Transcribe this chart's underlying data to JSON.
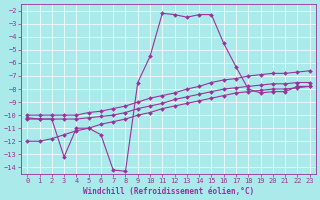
{
  "background_color": "#aaeaea",
  "grid_color": "#ffffff",
  "line_color": "#993399",
  "marker": "D",
  "marker_size": 2.0,
  "line_width": 0.8,
  "xlabel": "Windchill (Refroidissement éolien,°C)",
  "xlabel_fontsize": 5.5,
  "tick_fontsize": 5.0,
  "xlim": [
    -0.5,
    23.5
  ],
  "ylim": [
    -14.5,
    -1.5
  ],
  "yticks": [
    -2,
    -3,
    -4,
    -5,
    -6,
    -7,
    -8,
    -9,
    -10,
    -11,
    -12,
    -13,
    -14
  ],
  "xticks": [
    0,
    1,
    2,
    3,
    4,
    5,
    6,
    7,
    8,
    9,
    10,
    11,
    12,
    13,
    14,
    15,
    16,
    17,
    18,
    19,
    20,
    21,
    22,
    23
  ],
  "series": [
    {
      "x": [
        0,
        1,
        2,
        3,
        4,
        5,
        6,
        7,
        8,
        9,
        10,
        11,
        12,
        13,
        14,
        15,
        16,
        17,
        18,
        19,
        20,
        21,
        22,
        23
      ],
      "y": [
        -10.2,
        -10.3,
        -10.3,
        -13.2,
        -11.0,
        -11.0,
        -11.5,
        -14.2,
        -14.3,
        -7.5,
        -5.5,
        -2.2,
        -2.3,
        -2.5,
        -2.3,
        -2.3,
        -4.5,
        -6.3,
        -8.0,
        -8.3,
        -8.2,
        -8.2,
        -7.8,
        -7.8
      ]
    },
    {
      "x": [
        0,
        1,
        2,
        3,
        4,
        5,
        6,
        7,
        8,
        9,
        10,
        11,
        12,
        13,
        14,
        15,
        16,
        17,
        18,
        19,
        20,
        21,
        22,
        23
      ],
      "y": [
        -10.0,
        -10.0,
        -10.0,
        -10.0,
        -10.0,
        -9.8,
        -9.7,
        -9.5,
        -9.3,
        -9.0,
        -8.7,
        -8.5,
        -8.3,
        -8.0,
        -7.8,
        -7.5,
        -7.3,
        -7.2,
        -7.0,
        -6.9,
        -6.8,
        -6.8,
        -6.7,
        -6.6
      ]
    },
    {
      "x": [
        0,
        1,
        2,
        3,
        4,
        5,
        6,
        7,
        8,
        9,
        10,
        11,
        12,
        13,
        14,
        15,
        16,
        17,
        18,
        19,
        20,
        21,
        22,
        23
      ],
      "y": [
        -10.3,
        -10.3,
        -10.3,
        -10.3,
        -10.3,
        -10.2,
        -10.1,
        -10.0,
        -9.8,
        -9.5,
        -9.3,
        -9.1,
        -8.8,
        -8.6,
        -8.4,
        -8.2,
        -8.0,
        -7.9,
        -7.8,
        -7.7,
        -7.6,
        -7.6,
        -7.5,
        -7.5
      ]
    },
    {
      "x": [
        0,
        1,
        2,
        3,
        4,
        5,
        6,
        7,
        8,
        9,
        10,
        11,
        12,
        13,
        14,
        15,
        16,
        17,
        18,
        19,
        20,
        21,
        22,
        23
      ],
      "y": [
        -12.0,
        -12.0,
        -11.8,
        -11.5,
        -11.2,
        -11.0,
        -10.7,
        -10.5,
        -10.3,
        -10.0,
        -9.8,
        -9.5,
        -9.3,
        -9.1,
        -8.9,
        -8.7,
        -8.5,
        -8.3,
        -8.2,
        -8.1,
        -8.0,
        -8.0,
        -7.9,
        -7.8
      ]
    }
  ]
}
